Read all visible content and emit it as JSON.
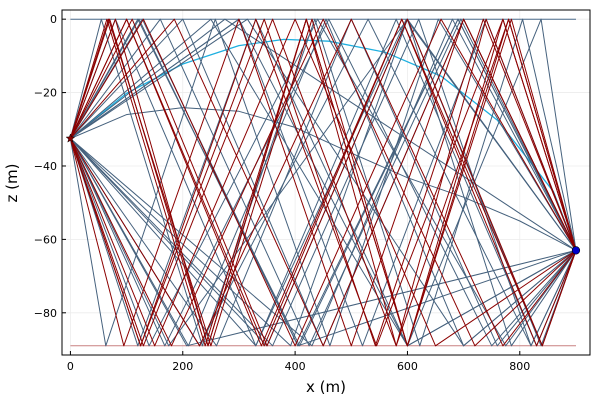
{
  "chart_data": {
    "type": "line",
    "title": "",
    "xlabel": "x (m)",
    "ylabel": "z (m)",
    "xlim": [
      -15,
      925
    ],
    "ylim": [
      -91.5,
      2.5
    ],
    "xticks": [
      0,
      200,
      400,
      600,
      800
    ],
    "yticks": [
      0,
      -20,
      -40,
      -60,
      -80
    ],
    "xtick_labels": [
      "0",
      "200",
      "400",
      "600",
      "800"
    ],
    "ytick_labels": [
      "0",
      "−20",
      "−40",
      "−60",
      "−80"
    ],
    "grid": true,
    "legend": "none",
    "source": {
      "x": 0,
      "z": -32.5,
      "marker": "star",
      "color": "#8b0000"
    },
    "receiver": {
      "x": 900,
      "z": -63,
      "marker": "circle",
      "color": "#0000cd"
    },
    "series": [
      {
        "kind": "boundary",
        "color": "#4a6b8a",
        "x": [
          0,
          900
        ],
        "y": [
          0,
          0
        ]
      },
      {
        "kind": "boundary",
        "color": "#c98080",
        "x": [
          0,
          900
        ],
        "y": [
          -89,
          -89
        ]
      },
      {
        "kind": "direct",
        "color": "#1fb0e0",
        "x": [
          0,
          100,
          200,
          300,
          380,
          460,
          560,
          660,
          760,
          860,
          900
        ],
        "y": [
          -32.5,
          -20.2,
          -12.2,
          -7.2,
          -5.5,
          -6.0,
          -9.0,
          -15.5,
          -27.5,
          -47,
          -63
        ]
      },
      {
        "kind": "refracted",
        "color": "#45617d",
        "x": [
          0,
          100,
          200,
          300,
          400,
          500,
          600,
          700,
          800,
          850,
          900
        ],
        "y": [
          -32.5,
          -26.0,
          -24.1,
          -25.1,
          -29.5,
          -36.5,
          -43.2,
          -48.5,
          -55.0,
          -59,
          -63
        ]
      },
      {
        "kind": "reflected",
        "color": "#45617d",
        "x": [
          0,
          275,
          900
        ],
        "y": [
          -32.5,
          0,
          -63
        ]
      },
      {
        "kind": "reflected",
        "color": "#45617d",
        "x": [
          0,
          207,
          900
        ],
        "y": [
          -32.5,
          -89,
          -63
        ]
      },
      {
        "kind": "reflected",
        "color": "#45617d",
        "x": [
          0,
          175,
          600,
          900
        ],
        "y": [
          -32.5,
          -89,
          0,
          -63
        ]
      },
      {
        "kind": "reflected",
        "color": "#45617d",
        "x": [
          0,
          122,
          405,
          900
        ],
        "y": [
          -32.5,
          0,
          -89,
          -63
        ]
      },
      {
        "kind": "reflected",
        "color": "#45617d",
        "x": [
          0,
          63,
          258,
          462,
          655,
          900
        ],
        "y": [
          -32.5,
          -89,
          0,
          -89,
          0,
          -63
        ]
      },
      {
        "kind": "reflected",
        "color": "#45617d",
        "x": [
          0,
          55,
          235,
          435,
          622,
          805,
          900
        ],
        "y": [
          -32.5,
          0,
          -89,
          0,
          -89,
          0,
          -63
        ]
      },
      {
        "kind": "reflected",
        "color": "#45617d",
        "x": [
          0,
          128,
          405,
          690,
          900
        ],
        "y": [
          -32.5,
          0,
          -89,
          0,
          -63
        ]
      },
      {
        "kind": "reflected",
        "color": "#45617d",
        "x": [
          0,
          120,
          330,
          600,
          838,
          900
        ],
        "y": [
          -32.5,
          -89,
          0,
          -89,
          0,
          -63
        ]
      },
      {
        "kind": "reflected",
        "color": "#45617d",
        "x": [
          0,
          200,
          450,
          700,
          900
        ],
        "y": [
          -32.5,
          0,
          -89,
          0,
          -63
        ]
      },
      {
        "kind": "reflected",
        "color": "#45617d",
        "x": [
          0,
          140,
          440,
          775,
          900
        ],
        "y": [
          -32.5,
          -89,
          0,
          -89,
          -63
        ]
      },
      {
        "kind": "reflected",
        "color": "#45617d",
        "x": [
          0,
          250,
          600,
          900
        ],
        "y": [
          -32.5,
          0,
          -89,
          -63
        ]
      },
      {
        "kind": "reflected",
        "color": "#45617d",
        "x": [
          0,
          315,
          700,
          900
        ],
        "y": [
          -32.5,
          0,
          -89,
          -63
        ]
      },
      {
        "kind": "reflected",
        "color": "#45617d",
        "x": [
          0,
          230,
          530,
          820,
          900
        ],
        "y": [
          -32.5,
          -89,
          0,
          -89,
          -63
        ]
      },
      {
        "kind": "reflected",
        "color": "#45617d",
        "x": [
          0,
          300,
          600,
          900
        ],
        "y": [
          -32.5,
          0,
          -89,
          -63
        ]
      },
      {
        "kind": "reflected",
        "color": "#45617d",
        "x": [
          0,
          300,
          520,
          740,
          900
        ],
        "y": [
          -32.5,
          0,
          -89,
          0,
          -63
        ]
      },
      {
        "kind": "reflected",
        "color": "#45617d",
        "x": [
          0,
          160,
          425,
          695,
          900
        ],
        "y": [
          -32.5,
          0,
          -89,
          0,
          -63
        ]
      },
      {
        "kind": "reflected",
        "color": "#45617d",
        "x": [
          0,
          168,
          460,
          750,
          900
        ],
        "y": [
          -32.5,
          -89,
          0,
          -89,
          -63
        ]
      },
      {
        "kind": "reflected",
        "color": "#45617d",
        "x": [
          0,
          210,
          455,
          700,
          900
        ],
        "y": [
          -32.5,
          -89,
          0,
          -89,
          -63
        ]
      },
      {
        "kind": "reflected",
        "color": "#45617d",
        "x": [
          0,
          80,
          330,
          580,
          830,
          900
        ],
        "y": [
          -32.5,
          0,
          -89,
          0,
          -89,
          -63
        ]
      },
      {
        "kind": "reflected",
        "color": "#45617d",
        "x": [
          0,
          260,
          500,
          760,
          900
        ],
        "y": [
          -32.5,
          -89,
          0,
          -89,
          -63
        ]
      },
      {
        "kind": "reflected",
        "color": "#45617d",
        "x": [
          0,
          392,
          600,
          785,
          900
        ],
        "y": [
          -32.5,
          -89,
          0,
          -89,
          -63
        ]
      },
      {
        "kind": "reflected",
        "color": "#45617d",
        "x": [
          0,
          430,
          680,
          900
        ],
        "y": [
          -32.5,
          -89,
          0,
          -63
        ]
      },
      {
        "kind": "reflected",
        "color": "#45617d",
        "x": [
          0,
          360,
          620,
          820,
          900
        ],
        "y": [
          -32.5,
          -89,
          0,
          -89,
          -63
        ]
      },
      {
        "kind": "reflected",
        "color": "#45617d",
        "x": [
          0,
          330,
          598,
          900
        ],
        "y": [
          -32.5,
          -89,
          0,
          -63
        ]
      },
      {
        "kind": "reflected",
        "color": "#45617d",
        "x": [
          0,
          350,
          600,
          838,
          900
        ],
        "y": [
          -32.5,
          -89,
          0,
          -89,
          -63
        ]
      },
      {
        "kind": "reflected",
        "color": "#45617d",
        "x": [
          0,
          120,
          408,
          690,
          900
        ],
        "y": [
          -32.5,
          0,
          -89,
          0,
          -63
        ]
      },
      {
        "kind": "multiple",
        "color": "#8b0000",
        "x": [
          0,
          68,
          250,
          430,
          600,
          770,
          900
        ],
        "y": [
          -32.5,
          0,
          -89,
          0,
          -89,
          0,
          -63
        ]
      },
      {
        "kind": "multiple",
        "color": "#8b0000",
        "x": [
          0,
          100,
          340,
          590,
          840,
          900
        ],
        "y": [
          -32.5,
          0,
          -89,
          0,
          -89,
          -63
        ]
      },
      {
        "kind": "multiple",
        "color": "#8b0000",
        "x": [
          0,
          130,
          400,
          660,
          900
        ],
        "y": [
          -32.5,
          0,
          -89,
          0,
          -63
        ]
      },
      {
        "kind": "multiple",
        "color": "#8b0000",
        "x": [
          0,
          180,
          450,
          720,
          900
        ],
        "y": [
          -32.5,
          -89,
          0,
          -89,
          -63
        ]
      },
      {
        "kind": "multiple",
        "color": "#8b0000",
        "x": [
          0,
          130,
          360,
          580,
          780,
          900
        ],
        "y": [
          -32.5,
          -89,
          0,
          -89,
          0,
          -63
        ]
      },
      {
        "kind": "multiple",
        "color": "#8b0000",
        "x": [
          0,
          80,
          245,
          420,
          580,
          740,
          900
        ],
        "y": [
          -32.5,
          0,
          -89,
          0,
          -89,
          0,
          -63
        ]
      },
      {
        "kind": "multiple",
        "color": "#8b0000",
        "x": [
          0,
          125,
          345,
          543,
          735,
          900
        ],
        "y": [
          -32.5,
          -89,
          0,
          -89,
          0,
          -63
        ]
      },
      {
        "kind": "multiple",
        "color": "#8b0000",
        "x": [
          0,
          65,
          240,
          420,
          600,
          785,
          900
        ],
        "y": [
          -32.5,
          0,
          -89,
          0,
          -89,
          0,
          -63
        ]
      },
      {
        "kind": "multiple",
        "color": "#8b0000",
        "x": [
          0,
          230,
          500,
          770,
          900
        ],
        "y": [
          -32.5,
          -89,
          0,
          -89,
          -63
        ]
      },
      {
        "kind": "multiple",
        "color": "#8b0000",
        "x": [
          0,
          185,
          450,
          700,
          900
        ],
        "y": [
          -32.5,
          0,
          -89,
          0,
          -63
        ]
      },
      {
        "kind": "multiple",
        "color": "#8b0000",
        "x": [
          0,
          95,
          300,
          500,
          700,
          900
        ],
        "y": [
          -32.5,
          -89,
          0,
          -89,
          0,
          -63
        ]
      },
      {
        "kind": "multiple",
        "color": "#8b0000",
        "x": [
          0,
          110,
          350,
          600,
          840,
          900
        ],
        "y": [
          -32.5,
          0,
          -89,
          0,
          -89,
          -63
        ]
      },
      {
        "kind": "multiple",
        "color": "#8b0000",
        "x": [
          0,
          150,
          400,
          650,
          900
        ],
        "y": [
          -32.5,
          -89,
          0,
          -89,
          -63
        ]
      },
      {
        "kind": "multiple",
        "color": "#8b0000",
        "x": [
          0,
          100,
          345,
          590,
          830,
          900
        ],
        "y": [
          -32.5,
          0,
          -89,
          0,
          -89,
          -63
        ]
      },
      {
        "kind": "multiple",
        "color": "#8b0000",
        "x": [
          0,
          70,
          245,
          420,
          600,
          780,
          900
        ],
        "y": [
          -32.5,
          0,
          -89,
          0,
          -89,
          0,
          -63
        ]
      },
      {
        "kind": "multiple",
        "color": "#8b0000",
        "x": [
          0,
          125,
          330,
          545,
          770,
          900
        ],
        "y": [
          -32.5,
          -89,
          0,
          -89,
          0,
          -63
        ]
      }
    ]
  }
}
